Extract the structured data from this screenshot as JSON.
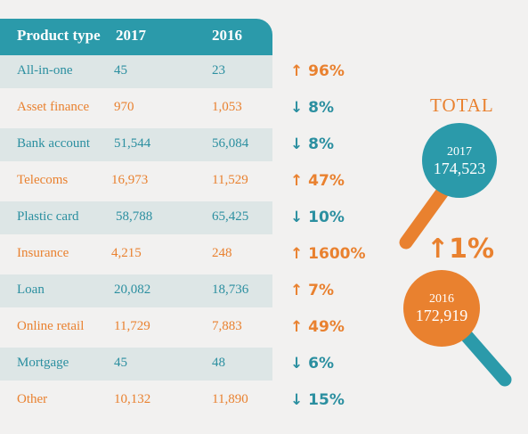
{
  "header": {
    "col_type": "Product type",
    "col_2017": "2017",
    "col_2016": "2016"
  },
  "rows": [
    {
      "type": "All-in-one",
      "v2017": "45",
      "v2016": "23",
      "direction": "up",
      "change": "96%"
    },
    {
      "type": "Asset finance",
      "v2017": "970",
      "v2016": "1,053",
      "direction": "down",
      "change": "8%"
    },
    {
      "type": "Bank account",
      "v2017": "51,544",
      "v2016": "56,084",
      "direction": "down",
      "change": "8%"
    },
    {
      "type": "Telecoms",
      "v2017": "16,973",
      "v2016": "11,529",
      "direction": "up",
      "change": "47%"
    },
    {
      "type": "Plastic card",
      "v2017": "58,788",
      "v2016": "65,425",
      "direction": "down",
      "change": "10%"
    },
    {
      "type": "Insurance",
      "v2017": "4,215",
      "v2016": "248",
      "direction": "up",
      "change": "1600%"
    },
    {
      "type": "Loan",
      "v2017": "20,082",
      "v2016": "18,736",
      "direction": "up",
      "change": "7%"
    },
    {
      "type": "Online retail",
      "v2017": "11,729",
      "v2016": "7,883",
      "direction": "up",
      "change": "49%"
    },
    {
      "type": "Mortgage",
      "v2017": "45",
      "v2016": "48",
      "direction": "down",
      "change": "6%"
    },
    {
      "type": "Other",
      "v2017": "10,132",
      "v2016": "11,890",
      "direction": "down",
      "change": "15%"
    }
  ],
  "total": {
    "label": "TOTAL",
    "year_2017": "2017",
    "value_2017": "174,523",
    "year_2016": "2016",
    "value_2016": "172,919",
    "direction": "up",
    "change": "1%"
  },
  "colors": {
    "teal": "#2b9aaa",
    "orange": "#e9812f",
    "row_shade": "#dde6e6",
    "background": "#f2f1f0"
  },
  "icons": {
    "up": "arrow-up-icon",
    "down": "arrow-down-icon"
  }
}
